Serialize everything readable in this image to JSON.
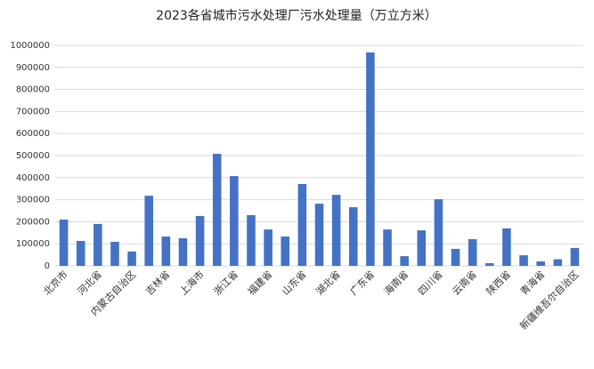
{
  "chart_data": {
    "type": "bar",
    "title": "2023各省城市污水处理厂污水处理量（万立方米）",
    "categories": [
      "北京市",
      null,
      "河北省",
      null,
      "内蒙古自治区",
      null,
      "吉林省",
      null,
      "上海市",
      null,
      "浙江省",
      null,
      "福建省",
      null,
      "山东省",
      null,
      "湖北省",
      null,
      "广东省",
      null,
      "海南省",
      null,
      "四川省",
      null,
      "云南省",
      null,
      "陕西省",
      null,
      "青海省",
      null,
      "新疆维吾尔自治区"
    ],
    "values": [
      210000,
      113000,
      190000,
      109000,
      65000,
      318000,
      133000,
      125000,
      226000,
      508000,
      407000,
      230000,
      165000,
      133000,
      371000,
      282000,
      322000,
      266000,
      968000,
      165000,
      44000,
      161000,
      302000,
      77000,
      121000,
      12000,
      170000,
      48000,
      20000,
      30000,
      81000
    ],
    "color": "#4472c4",
    "ylim": [
      0,
      1000000
    ],
    "yticks": [
      0,
      100000,
      200000,
      300000,
      400000,
      500000,
      600000,
      700000,
      800000,
      900000,
      1000000
    ],
    "grid": true
  }
}
